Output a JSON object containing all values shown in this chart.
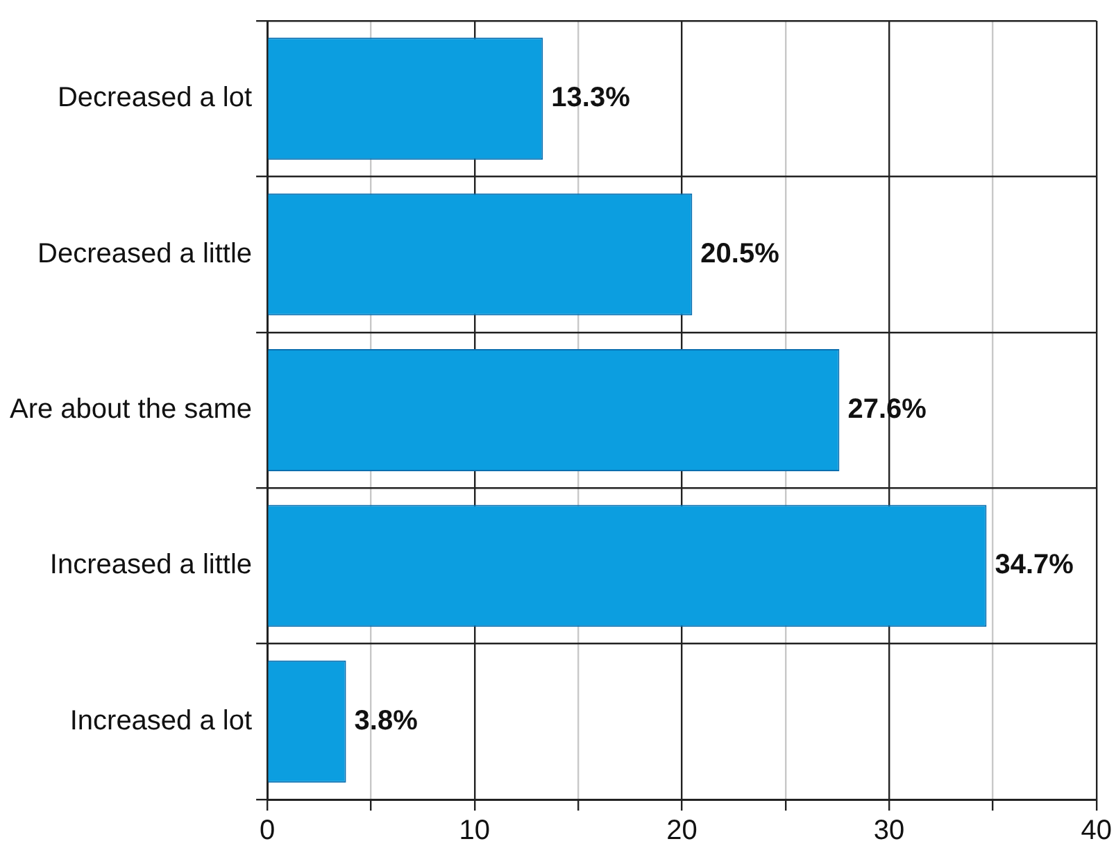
{
  "chart_data": {
    "type": "bar",
    "orientation": "horizontal",
    "categories": [
      "Decreased a lot",
      "Decreased a little",
      "Are about the same",
      "Increased a little",
      "Increased a lot"
    ],
    "values": [
      13.3,
      20.5,
      27.6,
      34.7,
      3.8
    ],
    "value_labels": [
      "13.3%",
      "20.5%",
      "27.6%",
      "34.7%",
      "3.8%"
    ],
    "color": "#0c9ee0",
    "xlim": [
      0,
      40
    ],
    "xticks": [
      0,
      {
        "value": 5,
        "label": null
      },
      10,
      {
        "value": 15,
        "label": null
      },
      20,
      {
        "value": 25,
        "label": null
      },
      30,
      {
        "value": 35,
        "label": null
      },
      40
    ],
    "grid": true,
    "legend": false
  }
}
